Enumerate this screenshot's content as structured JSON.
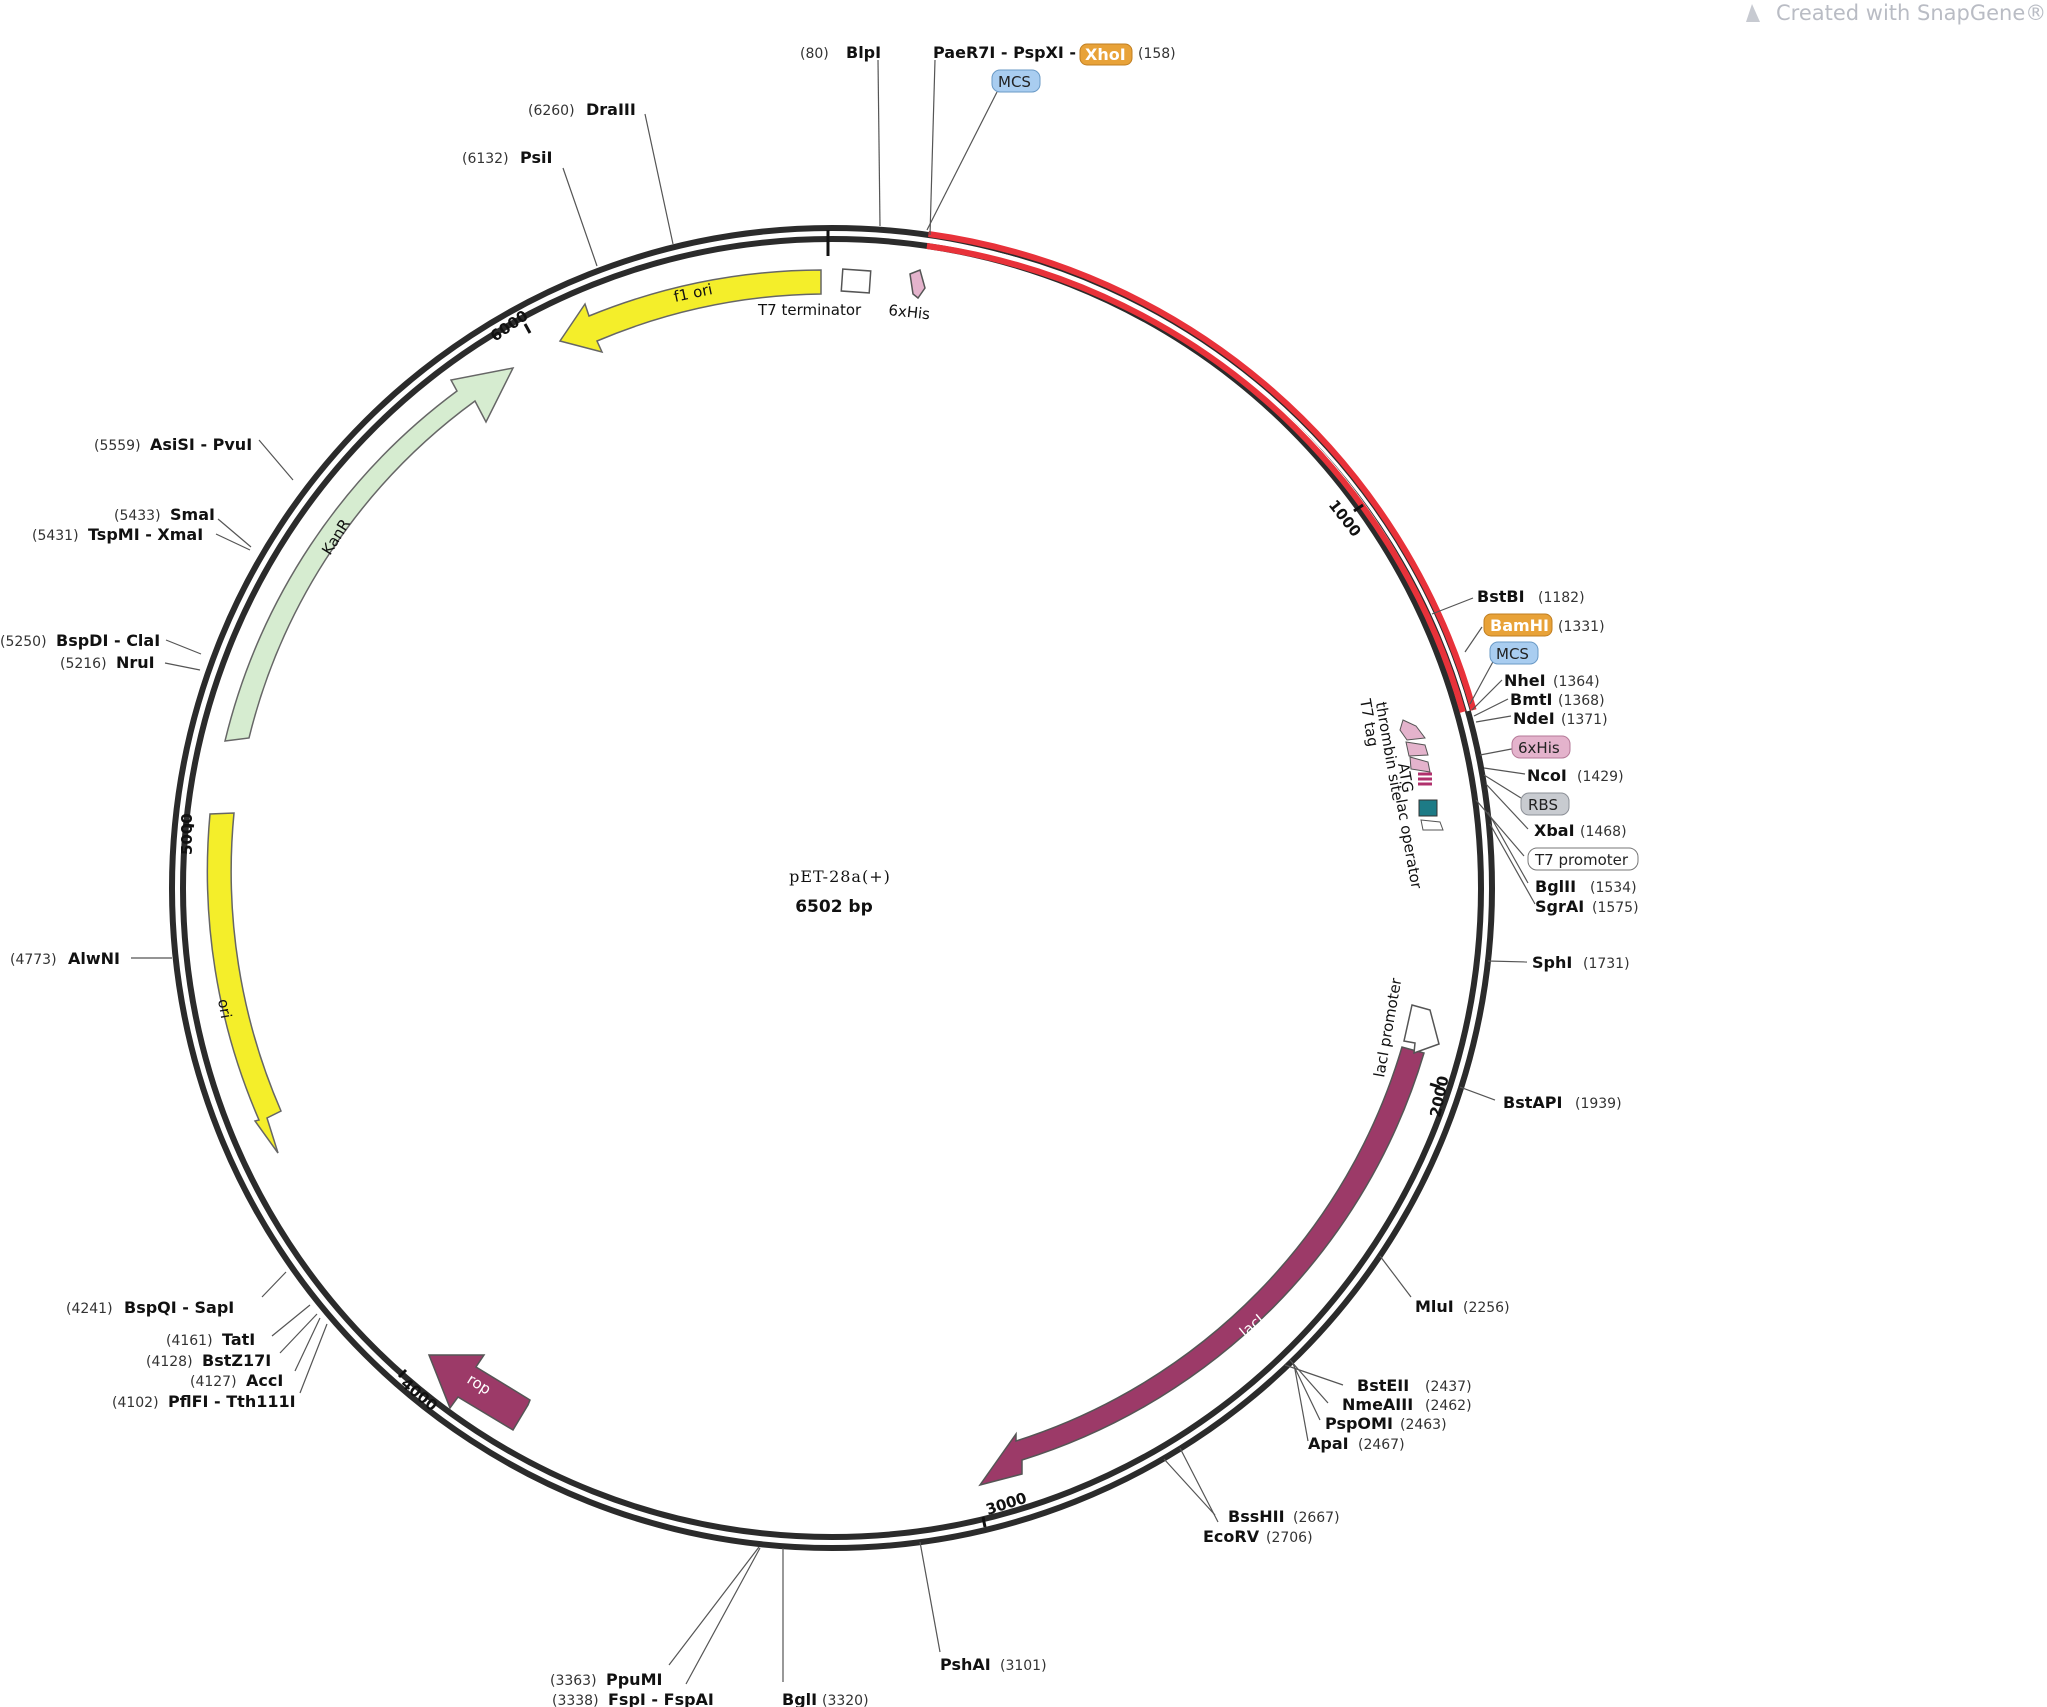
{
  "watermark": "Created with SnapGene®",
  "plasmid": {
    "name": "pET-28a(+)",
    "length_label": "6502 bp",
    "length": 6502
  },
  "ticks": [
    "1000",
    "2000",
    "3000",
    "4000",
    "5000",
    "6000"
  ],
  "colors": {
    "backbone": "#2b2b2b",
    "insert": "#e8323a",
    "yellow": "#f4ee2a",
    "kanr": "#d6ecd0",
    "laci": "#9c3a68",
    "mcs": "#a9cdf0",
    "his": "#e4b3cc",
    "rbs": "#c8cbd0",
    "bamhi": "#e8a238"
  },
  "features": [
    {
      "id": "f1-ori",
      "label": "f1 ori",
      "start": 5500,
      "end": 6000,
      "dir": "ccw",
      "color": "#f4ee2a"
    },
    {
      "id": "kanr",
      "label": "KanR",
      "start": 5900,
      "end": 5100,
      "dir": "cw",
      "color": "#d6ecd0"
    },
    {
      "id": "ori",
      "label": "ori",
      "start": 4900,
      "end": 4450,
      "dir": "ccw",
      "color": "#f4ee2a"
    },
    {
      "id": "laci",
      "label": "lacI",
      "start": 1860,
      "end": 2900,
      "dir": "cw",
      "color": "#9c3a68"
    },
    {
      "id": "rop",
      "label": "rop",
      "start": 4040,
      "end": 3900,
      "dir": "ccw",
      "color": "#9c3a68"
    },
    {
      "id": "t7-terminator",
      "label": "T7 terminator"
    },
    {
      "id": "his-top",
      "label": "6xHis"
    },
    {
      "id": "laci-promoter",
      "label": "lacI promoter"
    },
    {
      "id": "t7-tag",
      "label": "T7 tag"
    },
    {
      "id": "thrombin-site",
      "label": "thrombin site"
    },
    {
      "id": "atg",
      "label": "ATG"
    },
    {
      "id": "lac-operator",
      "label": "lac operator"
    }
  ],
  "sites": [
    {
      "name": "BlpI",
      "pos": "(80)"
    },
    {
      "name": "PaeR7I - PspXI -",
      "pos": ""
    },
    {
      "name": "XhoI",
      "pos": "(158)"
    },
    {
      "name": "MCS",
      "pos": ""
    },
    {
      "name": "DraIII",
      "pos": "(6260)"
    },
    {
      "name": "PsiI",
      "pos": "(6132)"
    },
    {
      "name": "AsiSI - PvuI",
      "pos": "(5559)"
    },
    {
      "name": "SmaI",
      "pos": "(5433)"
    },
    {
      "name": "TspMI - XmaI",
      "pos": "(5431)"
    },
    {
      "name": "BspDI - ClaI",
      "pos": "(5250)"
    },
    {
      "name": "NruI",
      "pos": "(5216)"
    },
    {
      "name": "AlwNI",
      "pos": "(4773)"
    },
    {
      "name": "BspQI - SapI",
      "pos": "(4241)"
    },
    {
      "name": "TatI",
      "pos": "(4161)"
    },
    {
      "name": "BstZ17I",
      "pos": "(4128)"
    },
    {
      "name": "AccI",
      "pos": "(4127)"
    },
    {
      "name": "PflFI - Tth111I",
      "pos": "(4102)"
    },
    {
      "name": "PpuMI",
      "pos": "(3363)"
    },
    {
      "name": "FspI - FspAI",
      "pos": "(3338)"
    },
    {
      "name": "BglI",
      "pos": "(3320)"
    },
    {
      "name": "PshAI",
      "pos": "(3101)"
    },
    {
      "name": "BssHII",
      "pos": "(2667)"
    },
    {
      "name": "EcoRV",
      "pos": "(2706)"
    },
    {
      "name": "BstEII",
      "pos": "(2437)"
    },
    {
      "name": "NmeAIII",
      "pos": "(2462)"
    },
    {
      "name": "PspOMI",
      "pos": "(2463)"
    },
    {
      "name": "ApaI",
      "pos": "(2467)"
    },
    {
      "name": "MluI",
      "pos": "(2256)"
    },
    {
      "name": "BstAPI",
      "pos": "(1939)"
    },
    {
      "name": "SphI",
      "pos": "(1731)"
    },
    {
      "name": "BstBI",
      "pos": "(1182)"
    },
    {
      "name": "BamHI",
      "pos": "(1331)"
    },
    {
      "name": "MCS",
      "pos": ""
    },
    {
      "name": "NheI",
      "pos": "(1364)"
    },
    {
      "name": "BmtI",
      "pos": "(1368)"
    },
    {
      "name": "NdeI",
      "pos": "(1371)"
    },
    {
      "name": "6xHis",
      "pos": ""
    },
    {
      "name": "NcoI",
      "pos": "(1429)"
    },
    {
      "name": "RBS",
      "pos": ""
    },
    {
      "name": "XbaI",
      "pos": "(1468)"
    },
    {
      "name": "T7 promoter",
      "pos": ""
    },
    {
      "name": "BglII",
      "pos": "(1534)"
    },
    {
      "name": "SgrAI",
      "pos": "(1575)"
    }
  ]
}
